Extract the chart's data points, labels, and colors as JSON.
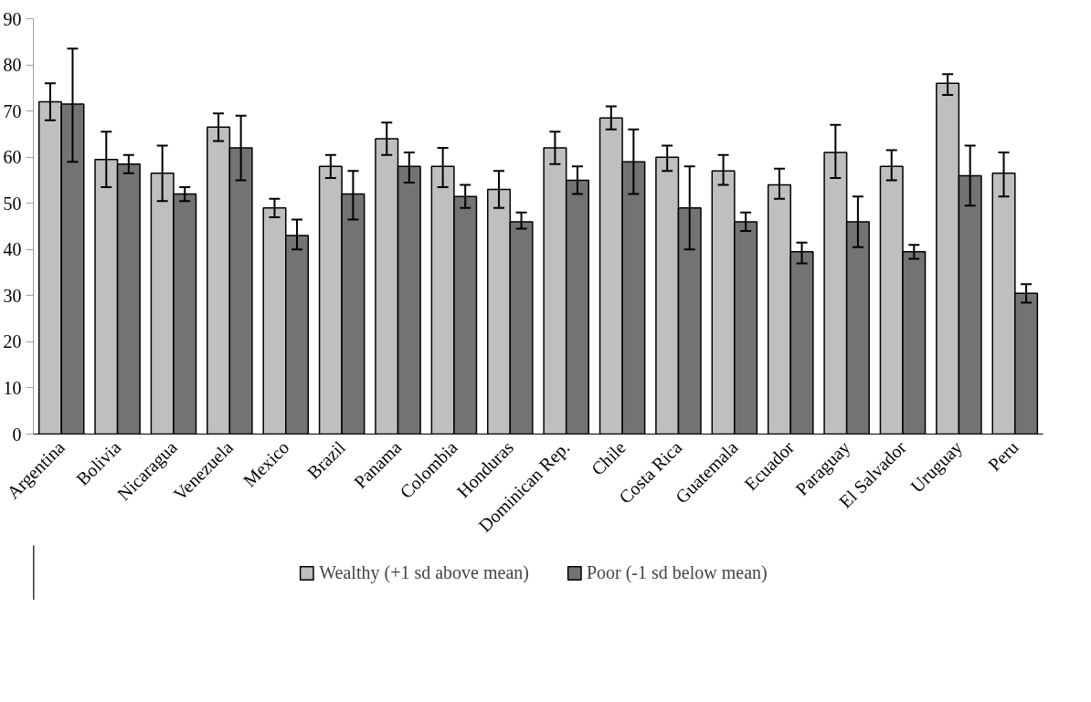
{
  "chart_data": {
    "type": "bar",
    "categories": [
      "Argentina",
      "Bolivia",
      "Nicaragua",
      "Venezuela",
      "Mexico",
      "Brazil",
      "Panama",
      "Colombia",
      "Honduras",
      "Dominican Rep.",
      "Chile",
      "Costa Rica",
      "Guatemala",
      "Ecuador",
      "Paraguay",
      "El Salvador",
      "Uruguay",
      "Peru"
    ],
    "series": [
      {
        "name": "Wealthy (+1 sd above mean)",
        "color": "#bfbfbf",
        "values": [
          72,
          59.5,
          56.5,
          66.5,
          49,
          58,
          64,
          58,
          53,
          62,
          68.5,
          60,
          57,
          54,
          61,
          58,
          76,
          56.5
        ],
        "errors": [
          [
            68,
            76
          ],
          [
            53.5,
            65.5
          ],
          [
            50.5,
            62.5
          ],
          [
            63.5,
            69.5
          ],
          [
            47,
            51
          ],
          [
            55.5,
            60.5
          ],
          [
            60.5,
            67.5
          ],
          [
            53.5,
            62
          ],
          [
            49,
            57
          ],
          [
            58.5,
            65.5
          ],
          [
            66,
            71
          ],
          [
            57,
            62.5
          ],
          [
            54,
            60.5
          ],
          [
            51,
            57.5
          ],
          [
            55.5,
            67
          ],
          [
            55,
            61.5
          ],
          [
            73.5,
            78
          ],
          [
            51.5,
            61
          ]
        ]
      },
      {
        "name": "Poor (-1 sd below mean)",
        "color": "#737373",
        "values": [
          71.5,
          58.5,
          52,
          62,
          43,
          52,
          58,
          51.5,
          46,
          55,
          59,
          49,
          46,
          39.5,
          46,
          39.5,
          56,
          30.5
        ],
        "errors": [
          [
            59,
            83.5
          ],
          [
            56.5,
            60.5
          ],
          [
            50.5,
            53.5
          ],
          [
            55,
            69
          ],
          [
            40,
            46.5
          ],
          [
            46.5,
            57
          ],
          [
            54.5,
            61
          ],
          [
            49,
            54
          ],
          [
            44.5,
            48
          ],
          [
            52,
            58
          ],
          [
            52,
            66
          ],
          [
            40,
            58
          ],
          [
            44,
            48
          ],
          [
            37,
            41.5
          ],
          [
            40.5,
            51.5
          ],
          [
            38,
            41
          ],
          [
            49.5,
            62.5
          ],
          [
            28.5,
            32.5
          ]
        ]
      }
    ],
    "ylim": [
      0,
      90
    ],
    "yticks": [
      0,
      10,
      20,
      30,
      40,
      50,
      60,
      70,
      80,
      90
    ],
    "grid": false,
    "legend": "bottom"
  }
}
